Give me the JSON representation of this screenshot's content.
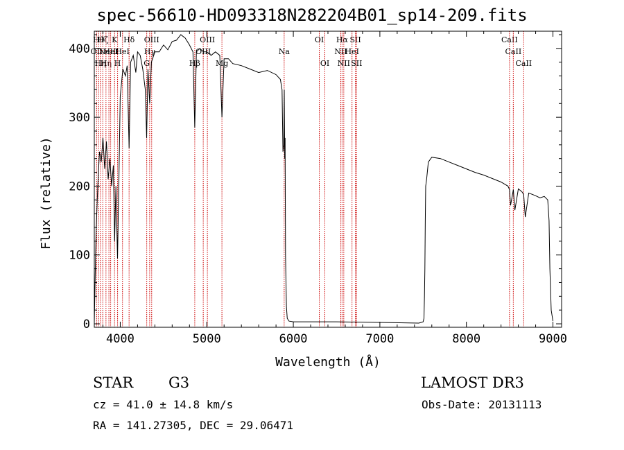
{
  "chart_data": {
    "type": "line",
    "title": "spec-56610-HD093318N282204B01_sp14-209.fits",
    "xlabel": "Wavelength (Å)",
    "ylabel": "Flux (relative)",
    "xlim": [
      3700,
      9100
    ],
    "ylim": [
      -5,
      425
    ],
    "xticks": [
      4000,
      5000,
      6000,
      7000,
      8000,
      9000
    ],
    "xtick_labels": [
      "4000",
      "5000",
      "6000",
      "7000",
      "8000",
      "9000"
    ],
    "yticks": [
      0,
      100,
      200,
      300,
      400
    ],
    "ytick_labels": [
      "0",
      "100",
      "200",
      "300",
      "400"
    ],
    "series": [
      {
        "name": "spectrum",
        "x": [
          3700,
          3720,
          3740,
          3760,
          3780,
          3800,
          3820,
          3840,
          3860,
          3880,
          3900,
          3920,
          3935,
          3950,
          3968,
          3985,
          4000,
          4030,
          4060,
          4080,
          4102,
          4120,
          4150,
          4180,
          4200,
          4230,
          4260,
          4290,
          4305,
          4320,
          4340,
          4360,
          4400,
          4450,
          4500,
          4550,
          4600,
          4650,
          4700,
          4750,
          4800,
          4840,
          4861,
          4880,
          4920,
          4960,
          5000,
          5050,
          5100,
          5150,
          5175,
          5200,
          5250,
          5300,
          5400,
          5500,
          5600,
          5700,
          5800,
          5850,
          5870,
          5880,
          5890,
          5895,
          5900,
          5905,
          5910,
          5915,
          5920,
          5930,
          5950,
          6000,
          6500,
          7000,
          7450,
          7500,
          7510,
          7515,
          7520,
          7525,
          7530,
          7540,
          7560,
          7600,
          7700,
          7800,
          7900,
          8000,
          8100,
          8200,
          8300,
          8400,
          8480,
          8498,
          8510,
          8542,
          8560,
          8600,
          8640,
          8662,
          8680,
          8720,
          8760,
          8800,
          8850,
          8900,
          8940,
          8955,
          8965,
          8980,
          9000
        ],
        "y": [
          2,
          130,
          200,
          250,
          235,
          270,
          225,
          265,
          210,
          240,
          200,
          230,
          120,
          200,
          95,
          215,
          330,
          370,
          360,
          375,
          255,
          380,
          390,
          365,
          395,
          390,
          370,
          340,
          270,
          370,
          320,
          380,
          395,
          395,
          405,
          398,
          410,
          412,
          420,
          415,
          405,
          395,
          285,
          395,
          400,
          395,
          395,
          390,
          395,
          390,
          300,
          385,
          385,
          378,
          375,
          370,
          365,
          368,
          362,
          355,
          340,
          250,
          260,
          340,
          240,
          270,
          100,
          60,
          25,
          8,
          4,
          3,
          3,
          2,
          1,
          3,
          8,
          40,
          80,
          150,
          200,
          210,
          235,
          242,
          240,
          235,
          230,
          225,
          220,
          216,
          211,
          206,
          200,
          195,
          172,
          195,
          165,
          196,
          192,
          188,
          155,
          190,
          188,
          186,
          183,
          185,
          180,
          150,
          80,
          20,
          4
        ]
      }
    ],
    "lines": [
      {
        "x": 3727,
        "label": "OII",
        "row": 2
      },
      {
        "x": 3750,
        "label": "Hθ",
        "row": 1
      },
      {
        "x": 3771,
        "label": "Hη",
        "row": 3
      },
      {
        "x": 3798,
        "label": "Hζ",
        "row": 1
      },
      {
        "x": 3835,
        "label": "Hη",
        "row": 3
      },
      {
        "x": 3869,
        "label": "NeIII",
        "row": 2
      },
      {
        "x": 3889,
        "label": "HeI",
        "row": 2
      },
      {
        "x": 3934,
        "label": "K",
        "row": 1
      },
      {
        "x": 3969,
        "label": "H",
        "row": 3
      },
      {
        "x": 4026,
        "label": "HeI",
        "row": 2
      },
      {
        "x": 4102,
        "label": "Hδ",
        "row": 1
      },
      {
        "x": 4306,
        "label": "G",
        "row": 3
      },
      {
        "x": 4340,
        "label": "Hγ",
        "row": 2
      },
      {
        "x": 4363,
        "label": "OIII",
        "row": 1
      },
      {
        "x": 4861,
        "label": "Hβ",
        "row": 3
      },
      {
        "x": 4959,
        "label": "OIII",
        "row": 2
      },
      {
        "x": 5007,
        "label": "OIII",
        "row": 1
      },
      {
        "x": 5175,
        "label": "Mg",
        "row": 3
      },
      {
        "x": 5894,
        "label": "Na",
        "row": 2
      },
      {
        "x": 6300,
        "label": "OI",
        "row": 1
      },
      {
        "x": 6364,
        "label": "OI",
        "row": 3
      },
      {
        "x": 6548,
        "label": "NII",
        "row": 2
      },
      {
        "x": 6563,
        "label": "Hα",
        "row": 1
      },
      {
        "x": 6583,
        "label": "NII",
        "row": 3
      },
      {
        "x": 6678,
        "label": "HeI",
        "row": 2
      },
      {
        "x": 6717,
        "label": "SII",
        "row": 1
      },
      {
        "x": 6731,
        "label": "SII",
        "row": 3
      },
      {
        "x": 8498,
        "label": "CaII",
        "row": 1
      },
      {
        "x": 8542,
        "label": "CaII",
        "row": 2
      },
      {
        "x": 8662,
        "label": "CaII",
        "row": 3
      }
    ],
    "line_color": "#cc0000",
    "spectrum_color": "#000000"
  },
  "info": {
    "object_class": "STAR",
    "subclass": "G3",
    "survey": "LAMOST DR3",
    "cz": "cz = 41.0 ± 14.8 km/s",
    "obs_date": "Obs-Date: 20131113",
    "radec": "RA = 141.27305, DEC =  29.06471"
  }
}
